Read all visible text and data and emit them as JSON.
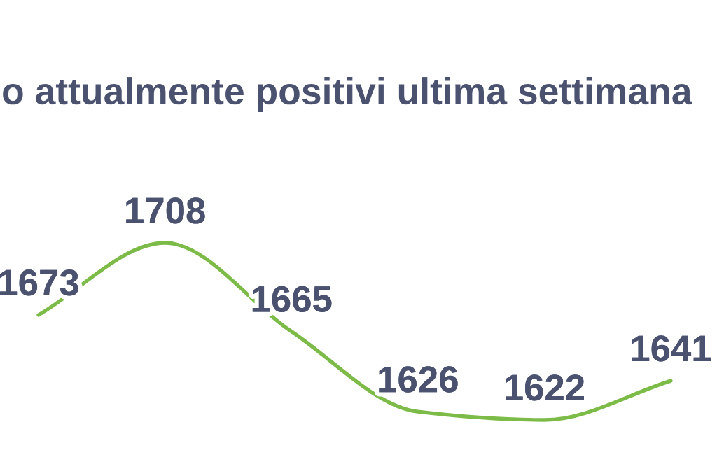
{
  "chart_data": {
    "type": "line",
    "title": "o attualmente positivi ultima settimana",
    "categories": [
      null,
      null,
      null,
      null,
      null,
      null
    ],
    "series": [
      {
        "color": "#7dbb48",
        "values": [
          1673,
          1708,
          1665,
          1626,
          1622,
          1641
        ]
      }
    ],
    "data_labels": true,
    "tick_labels": false,
    "line_style": "solid"
  }
}
